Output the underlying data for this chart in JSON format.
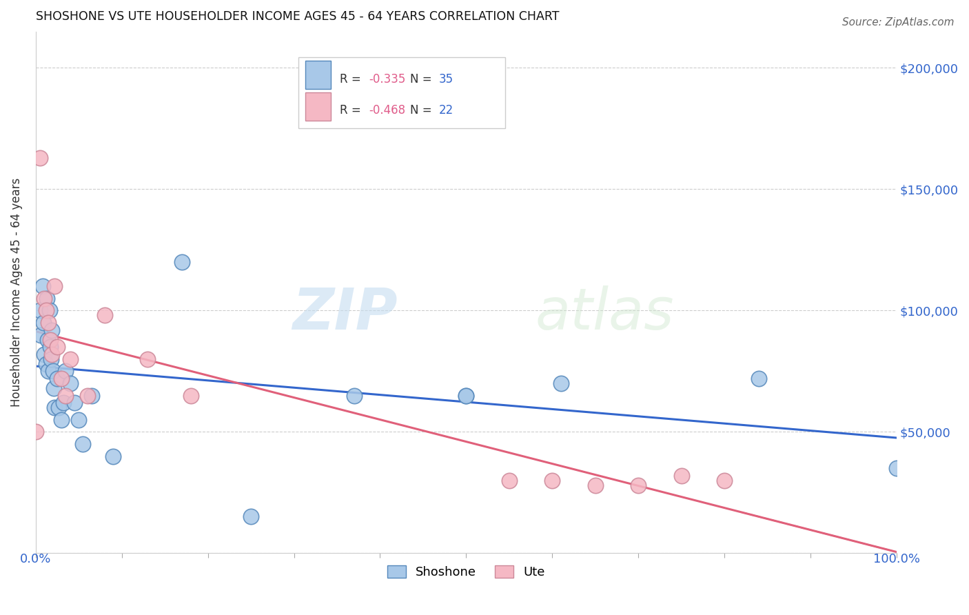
{
  "title": "SHOSHONE VS UTE HOUSEHOLDER INCOME AGES 45 - 64 YEARS CORRELATION CHART",
  "source": "Source: ZipAtlas.com",
  "ylabel": "Householder Income Ages 45 - 64 years",
  "shoshone_color": "#a8c8e8",
  "shoshone_color_line": "#3366cc",
  "shoshone_edge": "#5588bb",
  "ute_color": "#f5b8c4",
  "ute_color_line": "#e0607a",
  "ute_edge": "#cc8899",
  "shoshone_R": -0.335,
  "shoshone_N": 35,
  "ute_R": -0.468,
  "ute_N": 22,
  "yticks": [
    0,
    50000,
    100000,
    150000,
    200000
  ],
  "ytick_labels": [
    "",
    "$50,000",
    "$100,000",
    "$150,000",
    "$200,000"
  ],
  "right_ytick_labels": [
    "",
    "$50,000",
    "$100,000",
    "$150,000",
    "$200,000"
  ],
  "xlim": [
    0.0,
    1.0
  ],
  "ylim": [
    5000,
    215000
  ],
  "shoshone_x": [
    0.005,
    0.006,
    0.008,
    0.009,
    0.01,
    0.012,
    0.013,
    0.014,
    0.015,
    0.016,
    0.017,
    0.018,
    0.019,
    0.02,
    0.021,
    0.022,
    0.025,
    0.027,
    0.03,
    0.032,
    0.035,
    0.04,
    0.045,
    0.05,
    0.055,
    0.065,
    0.09,
    0.17,
    0.37,
    0.5,
    0.5,
    0.61,
    0.84,
    1.0,
    0.25
  ],
  "shoshone_y": [
    100000,
    90000,
    110000,
    95000,
    82000,
    78000,
    105000,
    88000,
    75000,
    100000,
    85000,
    80000,
    92000,
    75000,
    68000,
    60000,
    72000,
    60000,
    55000,
    62000,
    75000,
    70000,
    62000,
    55000,
    45000,
    65000,
    40000,
    120000,
    65000,
    65000,
    65000,
    70000,
    72000,
    35000,
    15000
  ],
  "ute_x": [
    0.005,
    0.01,
    0.012,
    0.015,
    0.017,
    0.019,
    0.022,
    0.025,
    0.03,
    0.035,
    0.04,
    0.06,
    0.08,
    0.13,
    0.18,
    0.6,
    0.65,
    0.7,
    0.75,
    0.8,
    0.55,
    0.0
  ],
  "ute_y": [
    163000,
    105000,
    100000,
    95000,
    88000,
    82000,
    110000,
    85000,
    72000,
    65000,
    80000,
    65000,
    98000,
    80000,
    65000,
    30000,
    28000,
    28000,
    32000,
    30000,
    30000,
    50000
  ],
  "watermark_zip": "ZIP",
  "watermark_atlas": "atlas",
  "background_color": "#ffffff",
  "grid_color": "#cccccc"
}
